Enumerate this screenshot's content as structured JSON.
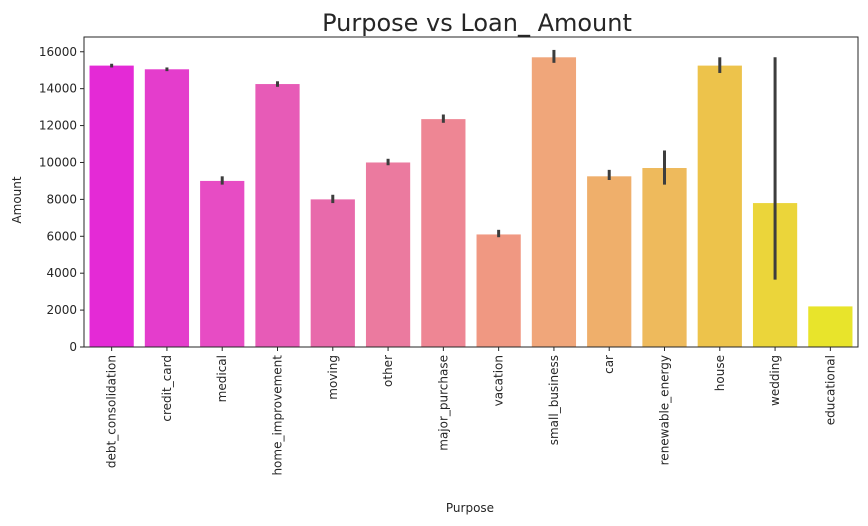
{
  "chart_data": {
    "type": "bar",
    "title": "Purpose vs Loan_ Amount",
    "xlabel": "Purpose",
    "ylabel": "Amount",
    "ylim": [
      0,
      16800
    ],
    "yticks": [
      0,
      2000,
      4000,
      6000,
      8000,
      10000,
      12000,
      14000,
      16000
    ],
    "grid": false,
    "categories": [
      "debt_consolidation",
      "credit_card",
      "medical",
      "home_improvement",
      "moving",
      "other",
      "major_purchase",
      "vacation",
      "small_business",
      "car",
      "renewable_energy",
      "house",
      "wedding",
      "educational"
    ],
    "values": [
      15250,
      15050,
      9000,
      14250,
      8000,
      10000,
      12350,
      6100,
      15700,
      9250,
      9700,
      15250,
      7800,
      2200
    ],
    "error_low": [
      15150,
      14950,
      8800,
      14100,
      7800,
      9850,
      12150,
      5950,
      15400,
      9050,
      8800,
      14850,
      3650,
      2200
    ],
    "error_high": [
      15350,
      15150,
      9250,
      14400,
      8250,
      10200,
      12600,
      6350,
      16100,
      9600,
      10650,
      15700,
      15700,
      2200
    ],
    "colors": [
      "#e42ad6",
      "#e43dcc",
      "#e74cc4",
      "#e75bb7",
      "#e86aab",
      "#eb7a9f",
      "#ee8694",
      "#f09882",
      "#f0a67a",
      "#efaf6b",
      "#eeba5c",
      "#edc34b",
      "#ebd53a",
      "#e8e42b"
    ],
    "error_color": "#3d3d3d"
  }
}
